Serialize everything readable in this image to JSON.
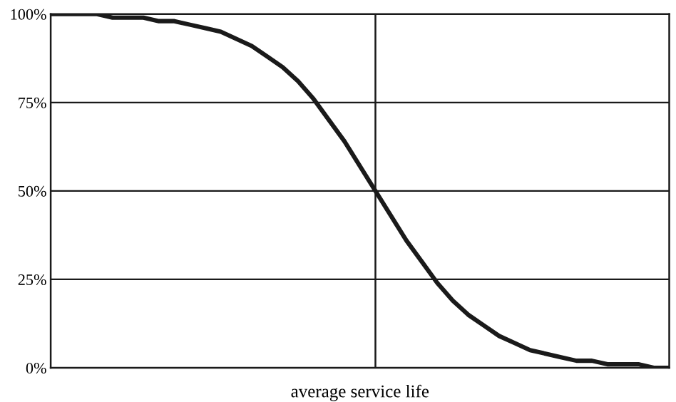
{
  "chart_data": {
    "type": "line",
    "xlabel": "average service life",
    "categories": [
      null,
      null,
      null,
      null,
      null,
      null,
      null,
      null,
      null,
      null,
      null,
      null,
      null,
      null,
      null,
      null,
      null,
      null,
      null,
      null,
      null,
      null,
      null,
      null,
      null,
      null,
      null,
      null,
      null,
      null,
      null,
      null,
      null,
      null,
      null,
      null,
      null,
      null,
      null,
      null,
      null
    ],
    "series": [
      {
        "color": "#1a1a1a",
        "values": [
          100,
          100,
          100,
          100,
          99,
          99,
          99,
          98,
          98,
          97,
          96,
          95,
          93,
          91,
          88,
          85,
          81,
          76,
          70,
          64,
          57,
          50,
          43,
          36,
          30,
          24,
          19,
          15,
          12,
          9,
          7,
          5,
          4,
          3,
          2,
          2,
          1,
          1,
          1,
          0,
          0
        ]
      }
    ],
    "ylim": [
      0,
      100
    ],
    "yticks": [
      {
        "value": 0,
        "label": "0%"
      },
      {
        "value": 25,
        "label": "25%"
      },
      {
        "value": 50,
        "label": "50%"
      },
      {
        "value": 75,
        "label": "75%"
      },
      {
        "value": 100,
        "label": "100%"
      }
    ],
    "grid": "y",
    "marker": "none",
    "line_style": "solid",
    "legend": false
  }
}
